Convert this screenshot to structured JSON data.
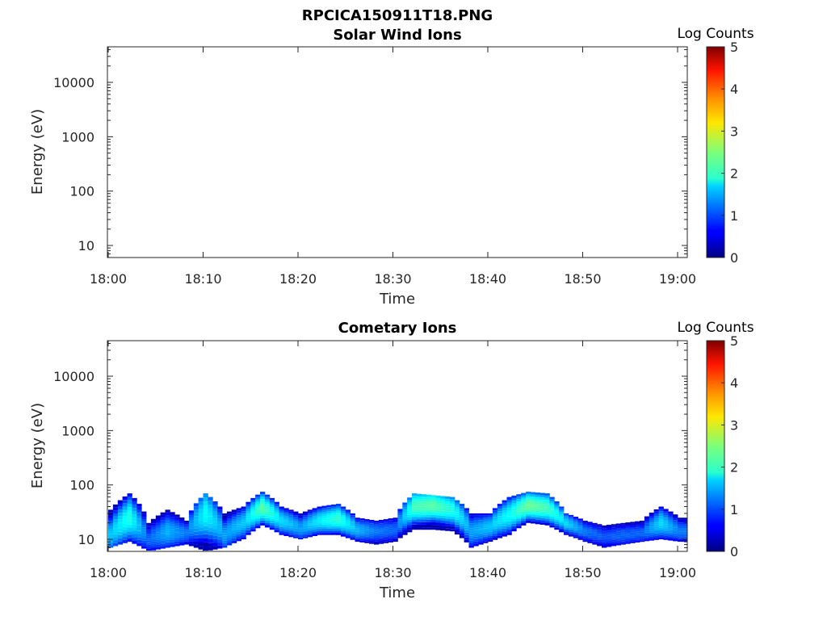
{
  "figure_title": "RPCICA150911T18.PNG",
  "chart_data": [
    {
      "type": "heatmap",
      "title": "Solar Wind Ions",
      "xlabel": "Time",
      "ylabel": "Energy (eV)",
      "y_scale": "log",
      "x_ticks": [
        "18:00",
        "18:10",
        "18:20",
        "18:30",
        "18:40",
        "18:50",
        "19:00"
      ],
      "y_ticks": [
        "10",
        "100",
        "1000",
        "10000"
      ],
      "colorbar": {
        "label": "Log Counts",
        "ticks": [
          "0",
          "1",
          "2",
          "3",
          "4",
          "5"
        ],
        "range": [
          0,
          5
        ],
        "colormap": "jet"
      },
      "bands": []
    },
    {
      "type": "heatmap",
      "title": "Cometary Ions",
      "xlabel": "Time",
      "ylabel": "Energy (eV)",
      "y_scale": "log",
      "x_ticks": [
        "18:00",
        "18:10",
        "18:20",
        "18:30",
        "18:40",
        "18:50",
        "19:00"
      ],
      "y_ticks": [
        "10",
        "100",
        "1000",
        "10000"
      ],
      "colorbar": {
        "label": "Log Counts",
        "ticks": [
          "0",
          "1",
          "2",
          "3",
          "4",
          "5"
        ],
        "range": [
          0,
          5
        ],
        "colormap": "jet"
      },
      "bands": [
        {
          "t": 0,
          "lo": 7,
          "hi": 35,
          "peak": 12,
          "level": 1.6
        },
        {
          "t": 2,
          "lo": 9,
          "hi": 70,
          "peak": 25,
          "level": 2.0
        },
        {
          "t": 4,
          "lo": 6,
          "hi": 20,
          "peak": 10,
          "level": 1.1
        },
        {
          "t": 6,
          "lo": 7,
          "hi": 35,
          "peak": 14,
          "level": 1.5
        },
        {
          "t": 8,
          "lo": 8,
          "hi": 22,
          "peak": 13,
          "level": 1.2
        },
        {
          "t": 10,
          "lo": 6,
          "hi": 70,
          "peak": 30,
          "level": 1.9
        },
        {
          "t": 12,
          "lo": 7,
          "hi": 30,
          "peak": 12,
          "level": 1.4
        },
        {
          "t": 14,
          "lo": 10,
          "hi": 40,
          "peak": 20,
          "level": 1.6
        },
        {
          "t": 16,
          "lo": 18,
          "hi": 75,
          "peak": 38,
          "level": 2.3
        },
        {
          "t": 18,
          "lo": 12,
          "hi": 40,
          "peak": 22,
          "level": 1.7
        },
        {
          "t": 20,
          "lo": 10,
          "hi": 30,
          "peak": 16,
          "level": 1.4
        },
        {
          "t": 22,
          "lo": 12,
          "hi": 40,
          "peak": 22,
          "level": 1.8
        },
        {
          "t": 24,
          "lo": 12,
          "hi": 45,
          "peak": 24,
          "level": 2.1
        },
        {
          "t": 26,
          "lo": 9,
          "hi": 25,
          "peak": 15,
          "level": 1.5
        },
        {
          "t": 28,
          "lo": 8,
          "hi": 22,
          "peak": 14,
          "level": 1.2
        },
        {
          "t": 30,
          "lo": 9,
          "hi": 25,
          "peak": 15,
          "level": 1.1
        },
        {
          "t": 32,
          "lo": 15,
          "hi": 70,
          "peak": 40,
          "level": 2.2
        },
        {
          "t": 34,
          "lo": 15,
          "hi": 65,
          "peak": 42,
          "level": 2.3
        },
        {
          "t": 36,
          "lo": 14,
          "hi": 60,
          "peak": 35,
          "level": 2.0
        },
        {
          "t": 38,
          "lo": 7,
          "hi": 30,
          "peak": 14,
          "level": 1.4
        },
        {
          "t": 40,
          "lo": 9,
          "hi": 30,
          "peak": 17,
          "level": 1.6
        },
        {
          "t": 42,
          "lo": 12,
          "hi": 60,
          "peak": 28,
          "level": 1.9
        },
        {
          "t": 44,
          "lo": 20,
          "hi": 75,
          "peak": 42,
          "level": 2.4
        },
        {
          "t": 46,
          "lo": 18,
          "hi": 70,
          "peak": 38,
          "level": 2.2
        },
        {
          "t": 48,
          "lo": 12,
          "hi": 30,
          "peak": 20,
          "level": 1.7
        },
        {
          "t": 50,
          "lo": 9,
          "hi": 22,
          "peak": 14,
          "level": 1.2
        },
        {
          "t": 52,
          "lo": 7,
          "hi": 18,
          "peak": 11,
          "level": 1.0
        },
        {
          "t": 54,
          "lo": 8,
          "hi": 20,
          "peak": 12,
          "level": 1.1
        },
        {
          "t": 56,
          "lo": 9,
          "hi": 22,
          "peak": 13,
          "level": 1.1
        },
        {
          "t": 58,
          "lo": 10,
          "hi": 40,
          "peak": 20,
          "level": 1.7
        },
        {
          "t": 60,
          "lo": 9,
          "hi": 25,
          "peak": 14,
          "level": 1.2
        }
      ]
    }
  ]
}
